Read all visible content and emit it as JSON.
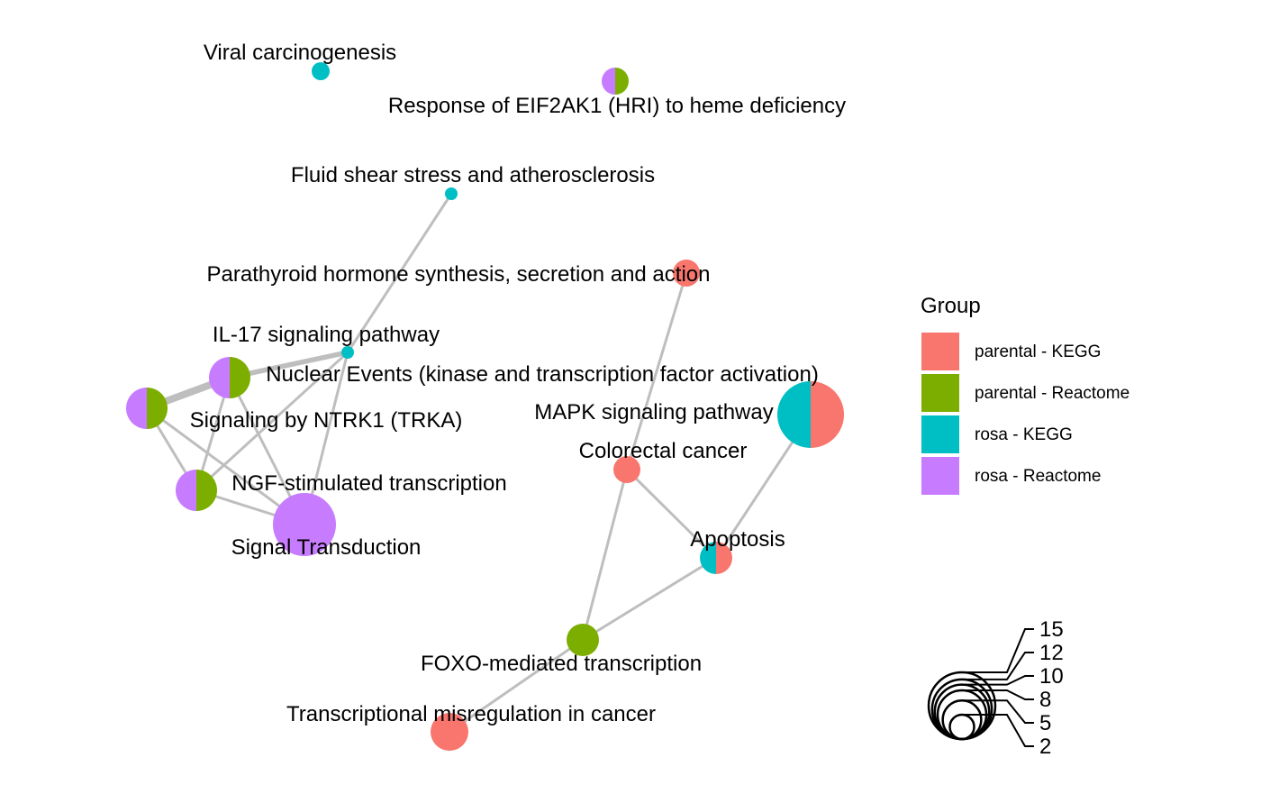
{
  "chart_data": {
    "type": "network",
    "groups": [
      {
        "name": "parental - KEGG",
        "color": "#F8766D"
      },
      {
        "name": "parental - Reactome",
        "color": "#7CAE00"
      },
      {
        "name": "rosa - KEGG",
        "color": "#00BFC4"
      },
      {
        "name": "rosa - Reactome",
        "color": "#C77CFF"
      }
    ],
    "legend_title": "Group",
    "size_legend_values": [
      15,
      12,
      10,
      8,
      5,
      2
    ],
    "nodes": [
      {
        "id": "viral",
        "label": "Viral carcinogenesis",
        "size": 3,
        "groups": [
          "rosa - KEGG"
        ]
      },
      {
        "id": "eif2ak1",
        "label": "Response of EIF2AK1 (HRI) to heme deficiency",
        "size": 4,
        "groups": [
          "rosa - Reactome",
          "parental - Reactome"
        ]
      },
      {
        "id": "fluid",
        "label": "Fluid shear stress and atherosclerosis",
        "size": 2,
        "groups": [
          "rosa - KEGG"
        ]
      },
      {
        "id": "parathyroid",
        "label": "Parathyroid hormone synthesis, secretion and action",
        "size": 4,
        "groups": [
          "parental - KEGG"
        ]
      },
      {
        "id": "il17",
        "label": "IL-17 signaling pathway",
        "size": 2,
        "groups": [
          "rosa - KEGG"
        ]
      },
      {
        "id": "nuclear",
        "label": "Nuclear Events (kinase and transcription factor activation)",
        "size": 7,
        "groups": [
          "rosa - Reactome",
          "parental - Reactome"
        ]
      },
      {
        "id": "ntrk1",
        "label": "Signaling by NTRK1 (TRKA)",
        "size": 7,
        "groups": [
          "rosa - Reactome",
          "parental - Reactome"
        ]
      },
      {
        "id": "ngf",
        "label": "NGF-stimulated transcription",
        "size": 7,
        "groups": [
          "rosa - Reactome",
          "parental - Reactome"
        ]
      },
      {
        "id": "signal",
        "label": "Signal Transduction",
        "size": 15,
        "groups": [
          "rosa - Reactome"
        ]
      },
      {
        "id": "mapk",
        "label": "MAPK signaling pathway",
        "size": 15,
        "groups": [
          "rosa - KEGG",
          "parental - KEGG"
        ]
      },
      {
        "id": "colorectal",
        "label": "Colorectal cancer",
        "size": 4,
        "groups": [
          "parental - KEGG"
        ]
      },
      {
        "id": "apoptosis",
        "label": "Apoptosis",
        "size": 5,
        "groups": [
          "rosa - KEGG",
          "parental - KEGG"
        ]
      },
      {
        "id": "foxo",
        "label": "FOXO-mediated transcription",
        "size": 5,
        "groups": [
          "parental - Reactome"
        ]
      },
      {
        "id": "transcriptional",
        "label": "Transcriptional misregulation in cancer",
        "size": 6,
        "groups": [
          "parental - KEGG"
        ]
      }
    ],
    "edges": [
      {
        "source": "fluid",
        "target": "il17",
        "weight": 1
      },
      {
        "source": "il17",
        "target": "nuclear",
        "weight": 2
      },
      {
        "source": "il17",
        "target": "ngf",
        "weight": 1
      },
      {
        "source": "il17",
        "target": "signal",
        "weight": 1
      },
      {
        "source": "ntrk1",
        "target": "nuclear",
        "weight": 3
      },
      {
        "source": "ntrk1",
        "target": "ngf",
        "weight": 1
      },
      {
        "source": "ntrk1",
        "target": "signal",
        "weight": 1
      },
      {
        "source": "nuclear",
        "target": "ngf",
        "weight": 1
      },
      {
        "source": "nuclear",
        "target": "signal",
        "weight": 1
      },
      {
        "source": "ngf",
        "target": "signal",
        "weight": 1
      },
      {
        "source": "parathyroid",
        "target": "colorectal",
        "weight": 1
      },
      {
        "source": "colorectal",
        "target": "apoptosis",
        "weight": 1
      },
      {
        "source": "colorectal",
        "target": "foxo",
        "weight": 1
      },
      {
        "source": "apoptosis",
        "target": "mapk",
        "weight": 1
      },
      {
        "source": "apoptosis",
        "target": "foxo",
        "weight": 1
      },
      {
        "source": "foxo",
        "target": "transcriptional",
        "weight": 1
      }
    ],
    "edge_color": "#BEBEBE"
  }
}
